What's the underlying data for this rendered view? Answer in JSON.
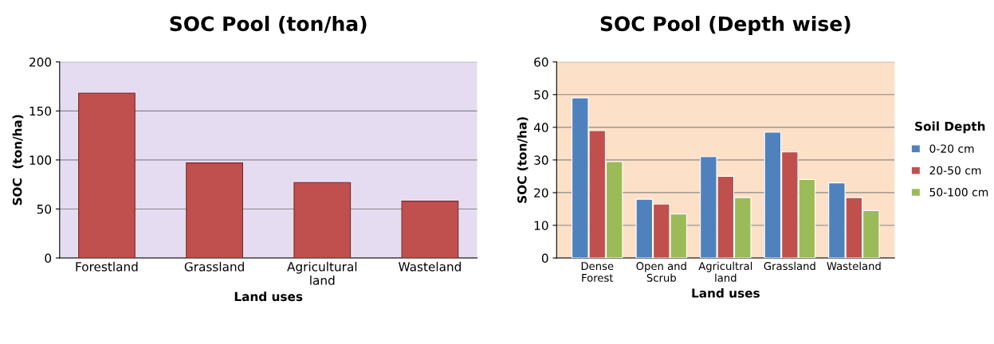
{
  "chart_data": [
    {
      "type": "bar",
      "title": "SOC Pool (ton/ha)",
      "xlabel": "Land uses",
      "ylabel": "SOC  (ton/ha)",
      "categories": [
        "Forestland",
        "Grassland",
        "Agricultural\nland",
        "Wasteland"
      ],
      "values": [
        168,
        97,
        77,
        58
      ],
      "color": "#c0504d",
      "ylim": [
        0,
        200
      ],
      "yticks": [
        0,
        50,
        100,
        150,
        200
      ],
      "grid": "y",
      "legend": false
    },
    {
      "type": "bar",
      "title": "SOC Pool (Depth wise)",
      "xlabel": "Land uses",
      "ylabel": "SOC (ton/ha)",
      "legend_title": "Soil Depth",
      "categories": [
        "Dense\nForest",
        "Open and\nScrub",
        "Agricultral\nland",
        "Grassland",
        "Wasteland"
      ],
      "series": [
        {
          "name": "0-20 cm",
          "color": "#4f81bd",
          "values": [
            49,
            18,
            31,
            38.5,
            23
          ]
        },
        {
          "name": "20-50 cm",
          "color": "#c0504d",
          "values": [
            39,
            16.5,
            25,
            32.5,
            18.5
          ]
        },
        {
          "name": "50-100 cm",
          "color": "#9bbb59",
          "values": [
            29.5,
            13.5,
            18.5,
            24,
            14.5
          ]
        }
      ],
      "ylim": [
        0,
        60
      ],
      "yticks": [
        0,
        10,
        20,
        30,
        40,
        50,
        60
      ],
      "grid": "y",
      "legend": "right"
    }
  ]
}
